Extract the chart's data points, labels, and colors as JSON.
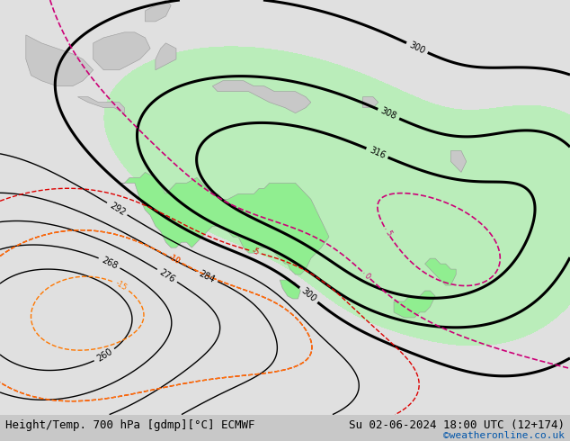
{
  "title_left": "Height/Temp. 700 hPa [gdmp][°C] ECMWF",
  "title_right": "Su 02-06-2024 18:00 UTC (12+174)",
  "credit": "©weatheronline.co.uk",
  "fig_width": 6.34,
  "fig_height": 4.9,
  "dpi": 100,
  "title_fontsize": 9,
  "credit_fontsize": 8,
  "credit_color": "#0055aa",
  "bg_color": "#c8c8c8",
  "ocean_color": "#e0e0e0",
  "land_color": "#c8c8c8",
  "aus_green": "#90ee90",
  "aus_green_fill": "#b4f0b4",
  "black_lw_thin": 1.0,
  "black_lw_thick": 2.0,
  "label_fs": 7,
  "extent_lon_min": 90,
  "extent_lon_max": 200,
  "extent_lat_min": -65,
  "extent_lat_max": 12,
  "geopotential_base": 298,
  "green_fill_threshold": 304,
  "green_fill_max": 340
}
